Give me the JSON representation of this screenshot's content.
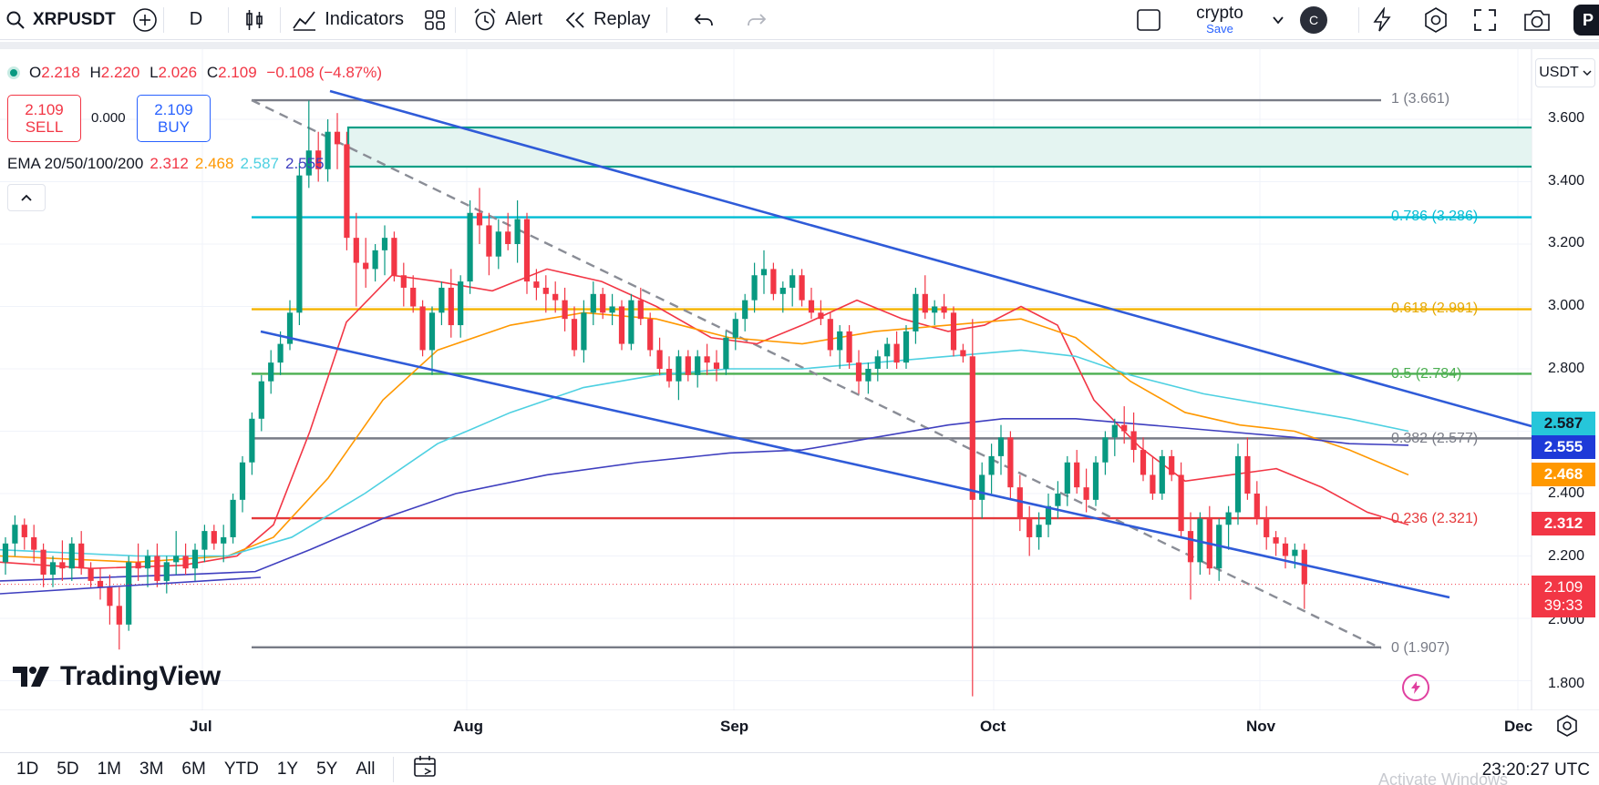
{
  "toolbar": {
    "symbol": "XRPUSDT",
    "interval": "D",
    "indicators_label": "Indicators",
    "alert_label": "Alert",
    "replay_label": "Replay",
    "layout_name": "crypto",
    "save_label": "Save",
    "avatar_letter": "C",
    "profile_partial": "P"
  },
  "legend": {
    "open_label": "O",
    "open": "2.218",
    "high_label": "H",
    "high": "2.220",
    "low_label": "L",
    "low": "2.026",
    "close_label": "C",
    "close": "2.109",
    "change": "−0.108 (−4.87%)"
  },
  "trade": {
    "sell_price": "2.109",
    "sell_label": "SELL",
    "spread": "0.000",
    "buy_price": "2.109",
    "buy_label": "BUY"
  },
  "ema": {
    "label": "EMA 20/50/100/200",
    "v20": "2.312",
    "v50": "2.468",
    "v100": "2.587",
    "v200": "2.555"
  },
  "currency": "USDT",
  "price_axis": {
    "ticks": [
      "3.600",
      "3.400",
      "3.200",
      "3.000",
      "2.800",
      "2.400",
      "2.200",
      "2.000",
      "1.800"
    ],
    "tags": {
      "ema100": "2.587",
      "ema200": "2.555",
      "ema50": "2.468",
      "ema20": "2.312",
      "last_price": "2.109",
      "countdown": "39:33"
    }
  },
  "fib_levels": [
    {
      "label": "1 (3.661)",
      "price": 3.661,
      "color": "#787b86"
    },
    {
      "label": "0.786 (3.286)",
      "price": 3.286,
      "color": "#00bcd4"
    },
    {
      "label": "0.618 (2.991)",
      "price": 2.991,
      "color": "#f5b400"
    },
    {
      "label": "0.5 (2.784)",
      "price": 2.784,
      "color": "#4caf50"
    },
    {
      "label": "0.382 (2.577)",
      "price": 2.577,
      "color": "#787b86"
    },
    {
      "label": "0.236 (2.321)",
      "price": 2.321,
      "color": "#e5393b"
    },
    {
      "label": "0 (1.907)",
      "price": 1.907,
      "color": "#787b86"
    }
  ],
  "time_axis": [
    "Jul",
    "Aug",
    "Sep",
    "Oct",
    "Nov",
    "Dec"
  ],
  "bottom": {
    "ranges": [
      "1D",
      "5D",
      "1M",
      "3M",
      "6M",
      "YTD",
      "1Y",
      "5Y",
      "All"
    ],
    "clock": "23:20:27 UTC",
    "activation": "Activate Windows"
  },
  "brand": "TradingView",
  "colors": {
    "up": "#089981",
    "down": "#f23645",
    "ema20": "#f23645",
    "ema50": "#ff9800",
    "ema100": "#4dd0e1",
    "ema200": "#3f3fbf",
    "channel": "#2f5bd8"
  }
}
